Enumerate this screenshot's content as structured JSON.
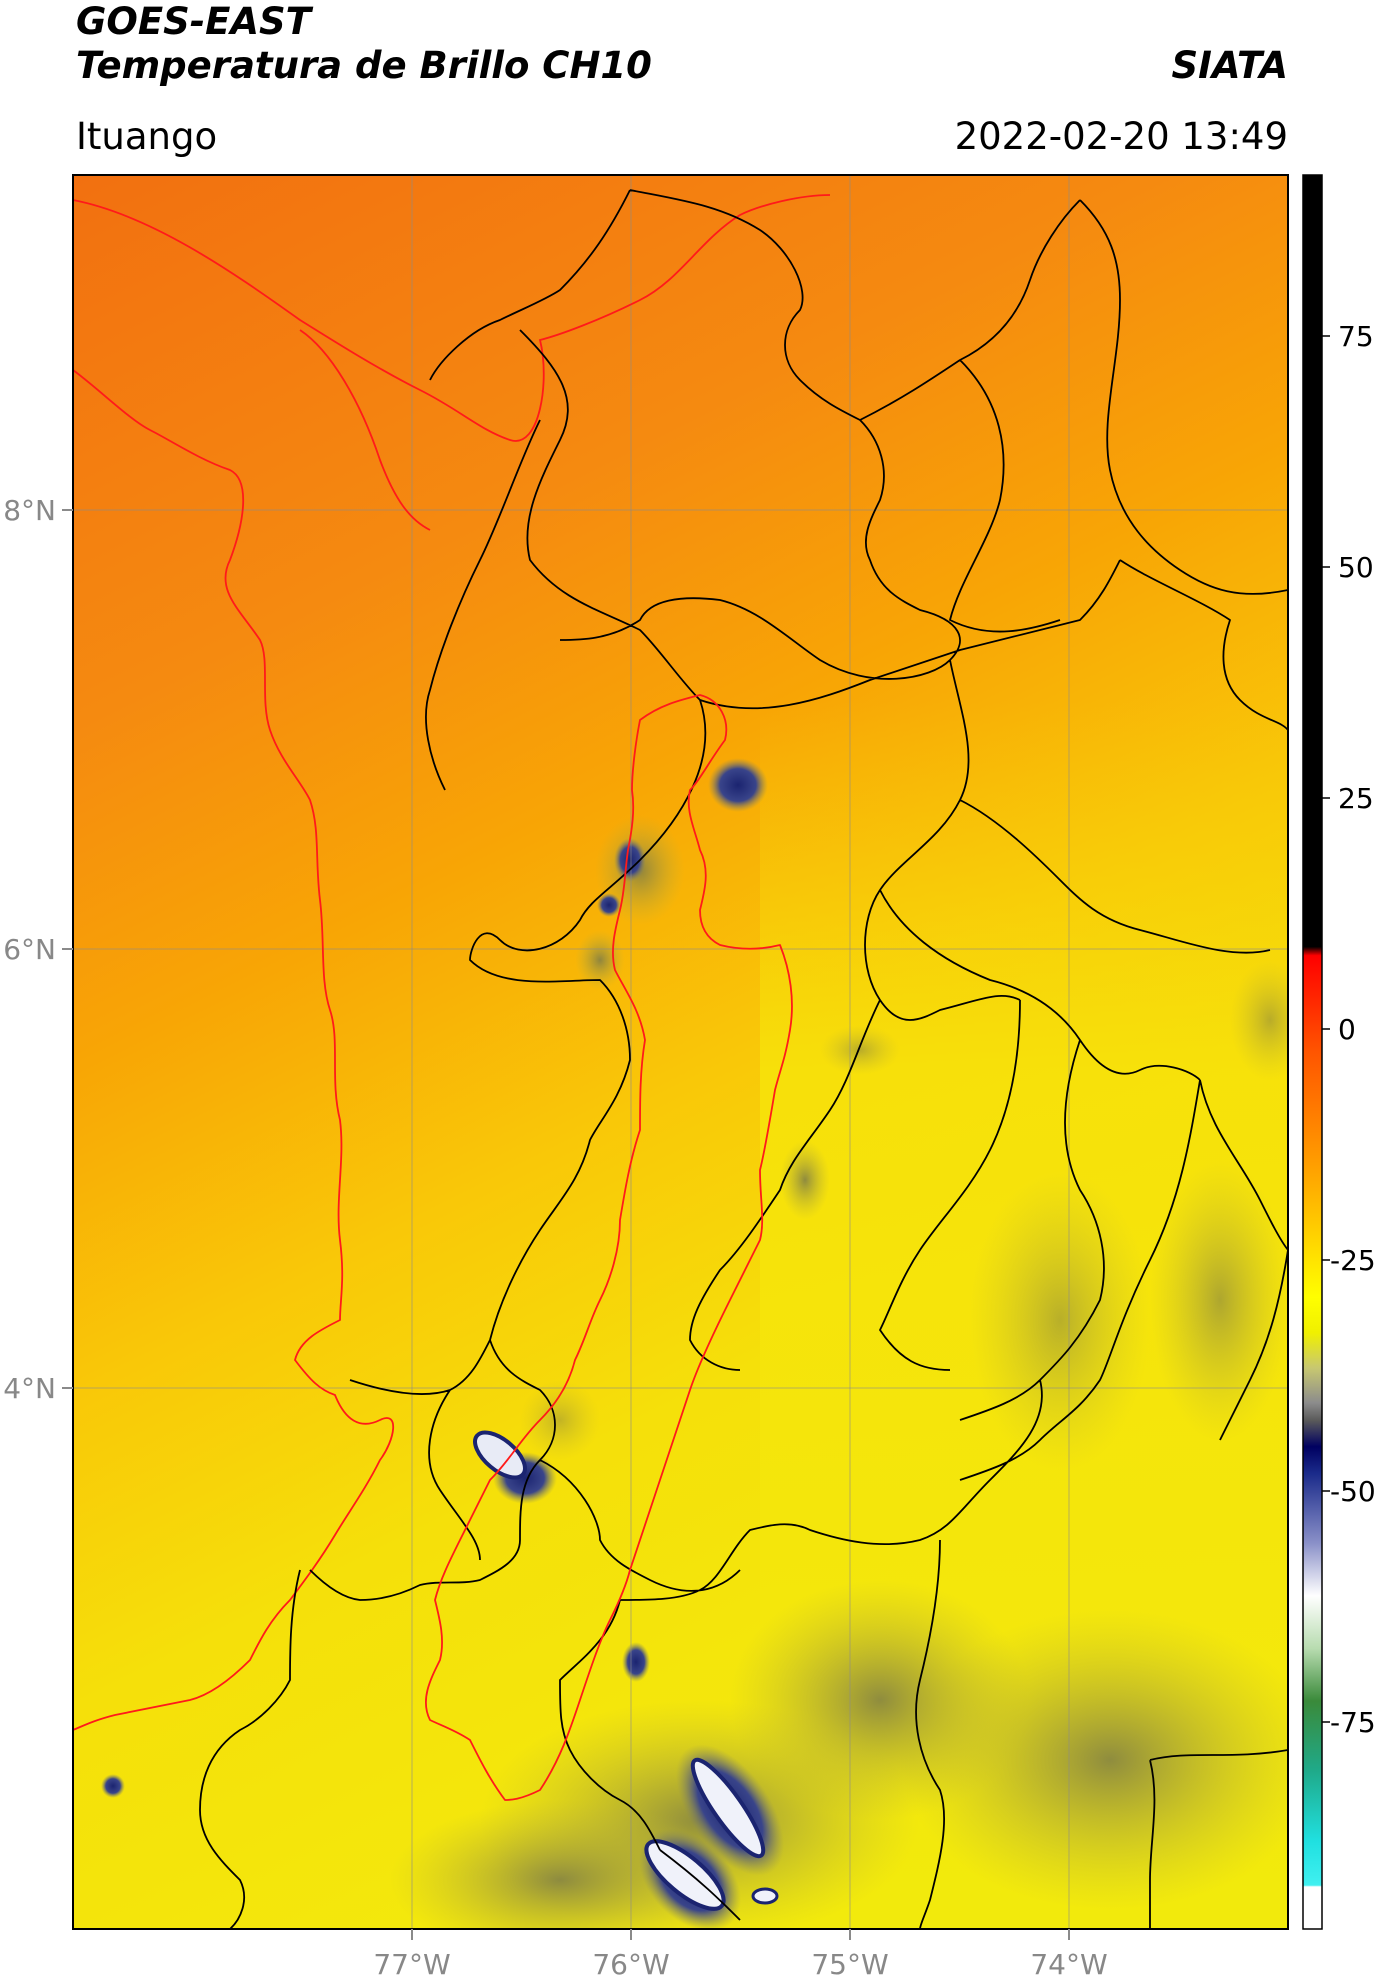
{
  "header": {
    "satellite": "GOES-EAST",
    "product": "Temperatura de Brillo CH10",
    "organization": "SIATA",
    "location": "Ituango",
    "datetime": "2022-02-20 13:49"
  },
  "map": {
    "lon_ticks": [
      "77°W",
      "76°W",
      "75°W",
      "74°W"
    ],
    "lat_ticks": [
      "8°N",
      "6°N",
      "4°N"
    ],
    "colorbar_ticks": [
      "75",
      "50",
      "25",
      "0",
      "-25",
      "-50",
      "-75"
    ],
    "colors": {
      "warm_orange": "#f07a10",
      "orange": "#f8a300",
      "yellow": "#f5e90a",
      "grey_olive": "#8c8a48",
      "navy": "#1b2a80",
      "white": "#f2f2f2",
      "green": "#3e8a3a",
      "cyan": "#20e0e0",
      "red": "#ff1010",
      "black": "#000000"
    }
  }
}
